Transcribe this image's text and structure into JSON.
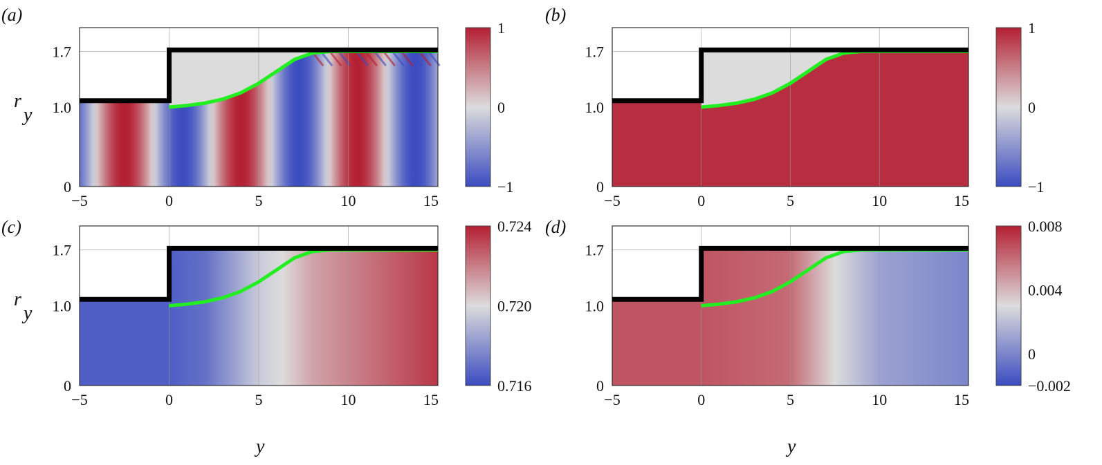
{
  "figure": {
    "xlabel": "y",
    "ylabel": "r",
    "ylabel_sub": "y"
  },
  "colors": {
    "red": "#b41f32",
    "white": "#dcdcdc",
    "blue": "#3b4cc0",
    "wall": "#000000",
    "interface": "#22ee22"
  },
  "chart_data": [
    {
      "type": "heatmap",
      "panel": "(a)",
      "xlim": [
        -5,
        15
      ],
      "ylim": [
        0,
        2
      ],
      "xticks": [
        "−5",
        "0",
        "5",
        "10",
        "15"
      ],
      "yticks": [
        "0",
        "1.0",
        "1.7"
      ],
      "colorbar": {
        "min": -1,
        "max": 1,
        "ticks": [
          "1",
          "0",
          "−1"
        ]
      },
      "field": "oscillatory",
      "description_values": {
        "wavelength_approx": 6.5
      }
    },
    {
      "type": "heatmap",
      "panel": "(b)",
      "xlim": [
        -5,
        15
      ],
      "ylim": [
        0,
        2
      ],
      "xticks": [
        "−5",
        "0",
        "5",
        "10",
        "15"
      ],
      "yticks": [
        "0",
        "1.0",
        "1.7"
      ],
      "colorbar": {
        "min": -1,
        "max": 1,
        "ticks": [
          "1",
          "0",
          "−1"
        ]
      },
      "field": "near-one",
      "value_level": 0.92
    },
    {
      "type": "heatmap",
      "panel": "(c)",
      "xlim": [
        -5,
        15
      ],
      "ylim": [
        0,
        2
      ],
      "xticks": [
        "−5",
        "0",
        "5",
        "10",
        "15"
      ],
      "yticks": [
        "0",
        "1.0",
        "1.7"
      ],
      "colorbar": {
        "min": 0.716,
        "max": 0.724,
        "ticks": [
          "0.724",
          "0.720",
          "0.716"
        ]
      },
      "field": "ramp",
      "x_profile": [
        {
          "y": -5,
          "value": 0.7165
        },
        {
          "y": 0,
          "value": 0.7165
        },
        {
          "y": 2,
          "value": 0.717
        },
        {
          "y": 5,
          "value": 0.7195
        },
        {
          "y": 6.3,
          "value": 0.72
        },
        {
          "y": 8,
          "value": 0.7212
        },
        {
          "y": 15,
          "value": 0.7235
        }
      ]
    },
    {
      "type": "heatmap",
      "panel": "(d)",
      "xlim": [
        -5,
        15
      ],
      "ylim": [
        0,
        2
      ],
      "xticks": [
        "−5",
        "0",
        "5",
        "10",
        "15"
      ],
      "yticks": [
        "0",
        "1.0",
        "1.7"
      ],
      "colorbar": {
        "min": -0.002,
        "max": 0.008,
        "ticks": [
          "0.008",
          "0.004",
          "0",
          "−0.002"
        ]
      },
      "field": "ramp",
      "x_profile": [
        {
          "y": -5,
          "value": 0.0066
        },
        {
          "y": 0,
          "value": 0.0066
        },
        {
          "y": 5,
          "value": 0.006
        },
        {
          "y": 7.5,
          "value": 0.003
        },
        {
          "y": 10,
          "value": 0.001
        },
        {
          "y": 15,
          "value": 0.0
        }
      ]
    }
  ],
  "geometry_data": {
    "wall": [
      [
        -5,
        1.08
      ],
      [
        0,
        1.08
      ],
      [
        0,
        1.72
      ],
      [
        15,
        1.72
      ]
    ],
    "interface": [
      [
        0,
        1.0
      ],
      [
        1,
        1.02
      ],
      [
        2,
        1.05
      ],
      [
        3,
        1.1
      ],
      [
        4,
        1.18
      ],
      [
        5,
        1.3
      ],
      [
        6,
        1.45
      ],
      [
        7,
        1.6
      ],
      [
        8,
        1.68
      ],
      [
        9,
        1.7
      ],
      [
        15,
        1.7
      ]
    ]
  }
}
